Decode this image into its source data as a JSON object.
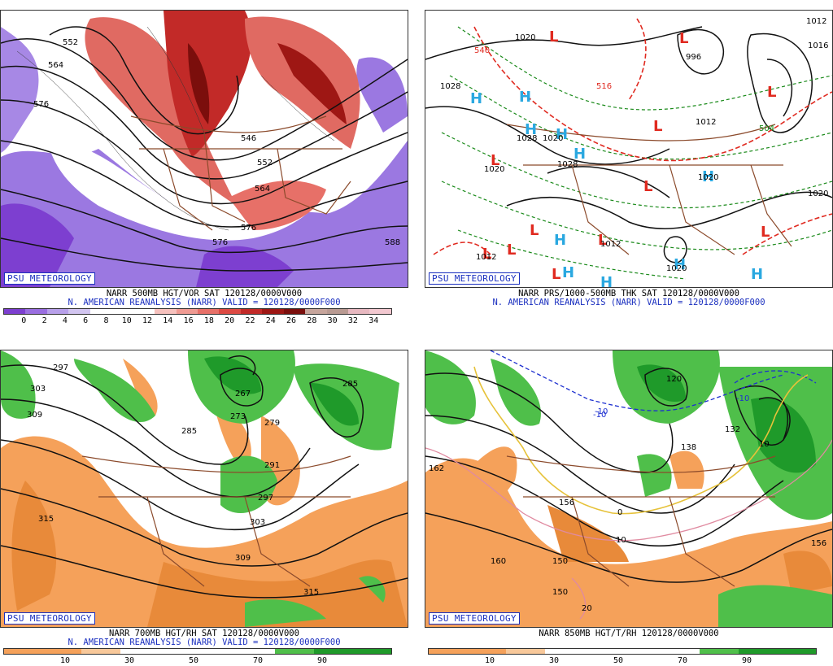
{
  "panels": [
    {
      "id": "p500",
      "badge": "PSU METEOROLOGY",
      "line1": "NARR 500MB HGT/VOR SAT 120128/0000V000",
      "line2": "N. AMERICAN REANALYSIS (NARR) VALID = 120128/0000F000",
      "scale_colors": [
        "#7d3fd0",
        "#9a6ee0",
        "#b8a0ea",
        "#d2c5f0",
        "#ffffff",
        "#ffffff",
        "#ffffff",
        "#f6c1bd",
        "#ef9a92",
        "#e77068",
        "#dd4a43",
        "#c22a28",
        "#9e1714",
        "#7b0e0c",
        "#c7a59c",
        "#b99a92",
        "#e7b8c0",
        "#f2c8d0"
      ],
      "scale_ticks": [
        "0",
        "2",
        "4",
        "6",
        "8",
        "10",
        "12",
        "14",
        "16",
        "18",
        "20",
        "22",
        "24",
        "26",
        "28",
        "30",
        "32",
        "34"
      ],
      "map_labels": [
        "552",
        "564",
        "576",
        "546",
        "552",
        "564",
        "576",
        "576",
        "588"
      ]
    },
    {
      "id": "pthk",
      "badge": "PSU METEOROLOGY",
      "line1": "NARR PRS/1000-500MB THK SAT 120128/0000V000",
      "line2": "N. AMERICAN REANALYSIS (NARR) VALID = 120128/0000F000",
      "map_labels": [
        "1020",
        "1016",
        "1028",
        "1020",
        "1012",
        "1020",
        "1020",
        "1028",
        "1020",
        "540",
        "516",
        "996",
        "1012",
        "1028",
        "1020",
        "1012",
        "504",
        "1012"
      ]
    },
    {
      "id": "p700",
      "badge": "PSU METEOROLOGY",
      "line1": "NARR 700MB HGT/RH SAT 120128/0000V000",
      "line2": "N. AMERICAN REANALYSIS (NARR) VALID = 120128/0000F000",
      "scale_ticks": [
        "10",
        "30",
        "50",
        "70",
        "90"
      ],
      "map_labels": [
        "297",
        "303",
        "309",
        "285",
        "267",
        "273",
        "279",
        "285",
        "291",
        "297",
        "303",
        "315",
        "309",
        "315"
      ]
    },
    {
      "id": "p850",
      "badge": "PSU METEOROLOGY",
      "line1": "NARR 850MB HGT/T/RH 120128/0000V000",
      "line2": "",
      "scale_ticks": [
        "10",
        "30",
        "50",
        "70",
        "90"
      ],
      "map_labels": [
        "162",
        "156",
        "120",
        "132",
        "138",
        "10",
        "-10",
        "-10",
        "0",
        "10",
        "150",
        "160",
        "150",
        "20",
        "156",
        "-10"
      ]
    }
  ],
  "colors": {
    "rh_dry": "#f5a15a",
    "rh_dry_light": "#f8c89a",
    "rh_moist": "#4fbf4a",
    "rh_wet": "#1f9a2a",
    "vort_low": "#8a60dc",
    "vort_high": "#d8383a",
    "contour": "#111111",
    "border": "#8b4a2b",
    "high": "#2aa8e0",
    "low": "#e02a20",
    "thk_green": "#1a8a1a",
    "thk_red": "#e02a20"
  }
}
